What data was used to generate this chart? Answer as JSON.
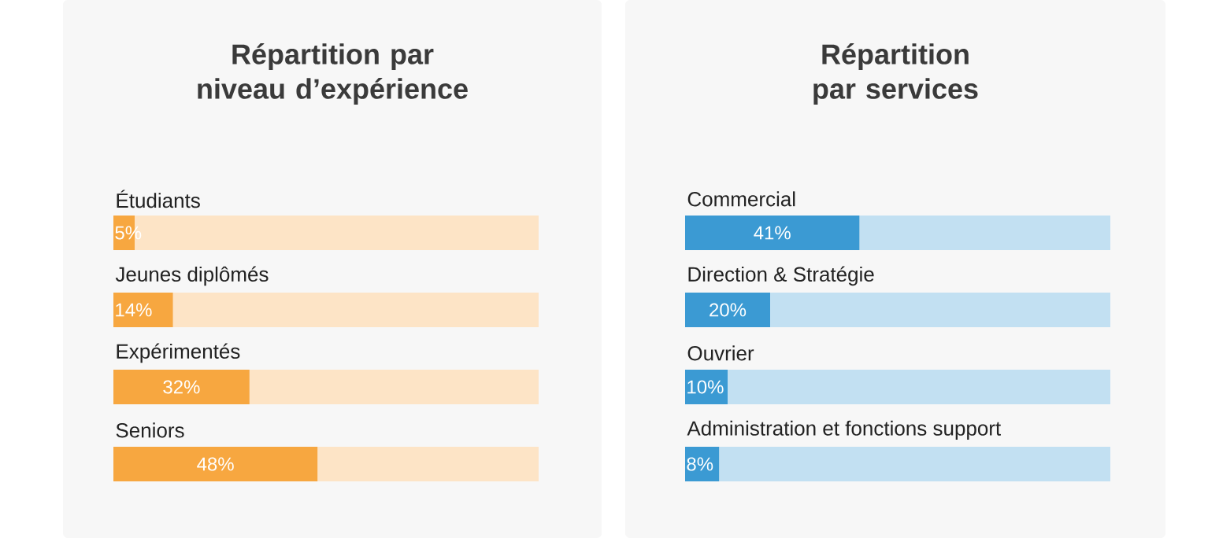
{
  "chart_data": [
    {
      "type": "bar",
      "orientation": "horizontal",
      "stacked": true,
      "title": "Répartition par niveau d’expérience",
      "categories": [
        "Étudiants",
        "Jeunes diplômés",
        "Expérimentés",
        "Seniors"
      ],
      "series": [
        {
          "color": "#f7a740",
          "values": [
            5,
            14,
            32,
            48
          ],
          "value_labels": [
            "5%",
            "14%",
            "32%",
            "48%"
          ]
        },
        {
          "color": "#fde4c6",
          "values": [
            95,
            86,
            68,
            52
          ]
        }
      ],
      "xlim": [
        0,
        100
      ],
      "tick_labels": false
    },
    {
      "type": "bar",
      "orientation": "horizontal",
      "stacked": true,
      "title": "Répartition par services",
      "categories": [
        "Commercial",
        "Direction & Stratégie",
        "Ouvrier",
        "Administration et fonctions support"
      ],
      "series": [
        {
          "color": "#3b9ad3",
          "values": [
            41,
            20,
            10,
            8
          ],
          "value_labels": [
            "41%",
            "20%",
            "10%",
            "8%"
          ]
        },
        {
          "color": "#c2e0f2",
          "values": [
            59,
            80,
            90,
            92
          ]
        }
      ],
      "xlim": [
        0,
        100
      ],
      "tick_labels": false
    }
  ]
}
